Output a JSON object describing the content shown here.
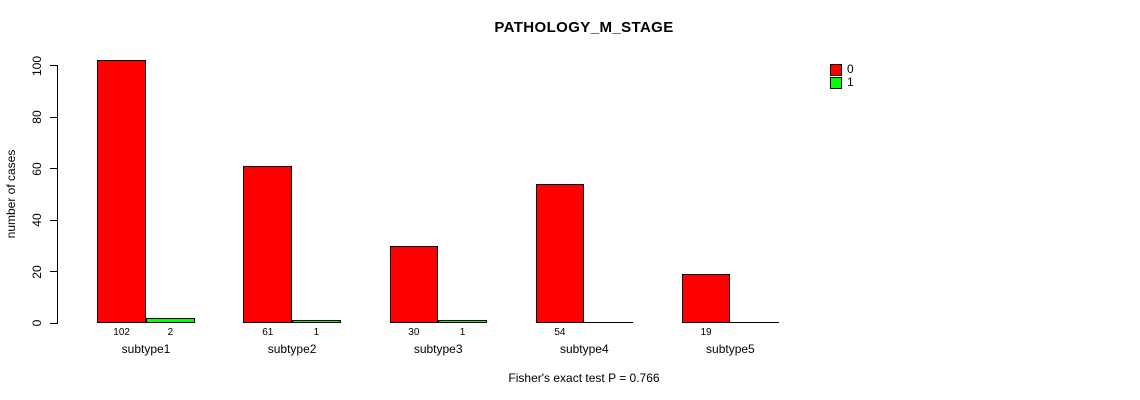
{
  "chart_data": {
    "type": "bar",
    "title": "PATHOLOGY_M_STAGE",
    "ylabel": "number of cases",
    "xlabel": "",
    "categories": [
      "subtype1",
      "subtype2",
      "subtype3",
      "subtype4",
      "subtype5"
    ],
    "series": [
      {
        "name": "0",
        "color": "#FF0000",
        "values": [
          102,
          61,
          30,
          54,
          19
        ]
      },
      {
        "name": "1",
        "color": "#00FF00",
        "values": [
          2,
          1,
          1,
          0,
          0
        ]
      }
    ],
    "ylim": [
      0,
      100
    ],
    "yticks": [
      0,
      20,
      40,
      60,
      80,
      100
    ],
    "grid": false,
    "legend_position": "top-right",
    "bar_value_labels_shown": true,
    "annotation": "Fisher's exact test P = 0.766"
  }
}
